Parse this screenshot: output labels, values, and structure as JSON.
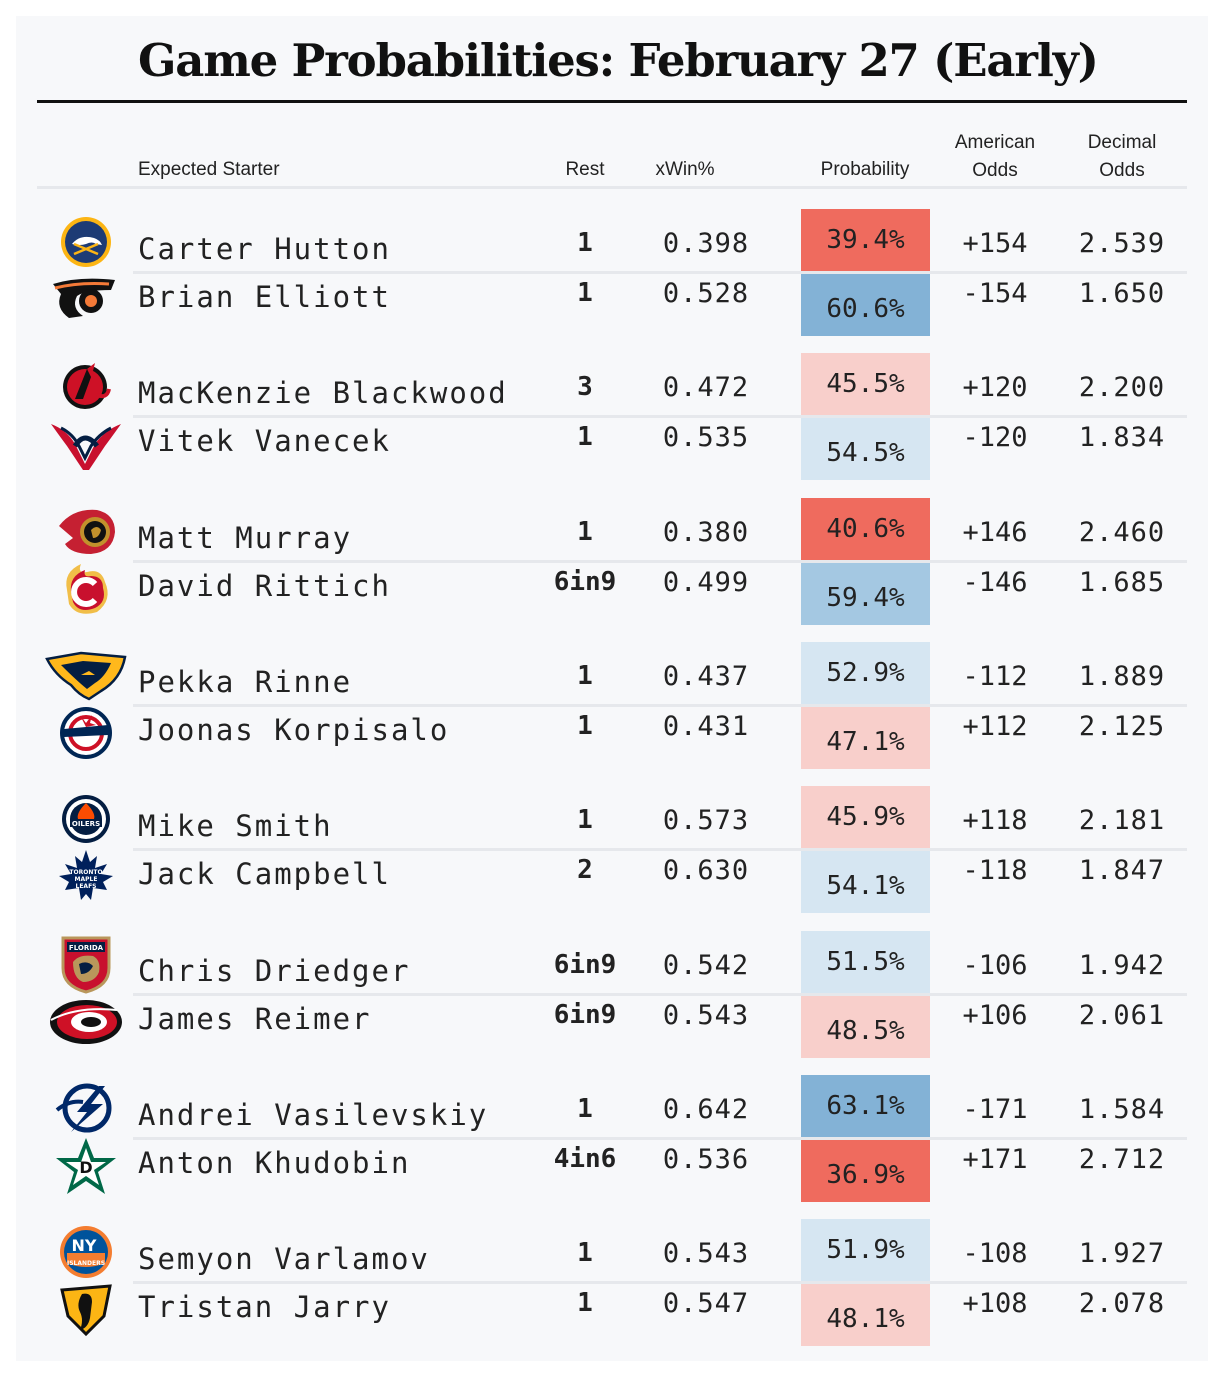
{
  "title": "Game Probabilities: February 27 (Early)",
  "headers": {
    "starter": "Expected Starter",
    "rest": "Rest",
    "xwin": "xWin%",
    "probability": "Probability",
    "american_1": "American",
    "american_2": "Odds",
    "decimal_1": "Decimal",
    "decimal_2": "Odds"
  },
  "colors": {
    "strong_red": "#ef6b5e",
    "medium_red": "#f4a9a1",
    "light_red": "#f8cfcb",
    "strong_blue": "#83b2d6",
    "medium_blue": "#a4c8e2",
    "light_blue": "#d6e6f2"
  },
  "games": [
    {
      "rows": [
        {
          "team_icon": "sabres-logo-icon",
          "name": "Carter Hutton",
          "rest": "1",
          "xwin": "0.398",
          "probability": "39.4%",
          "prob_value": 0.394,
          "american": "+154",
          "decimal": "2.539"
        },
        {
          "team_icon": "flyers-logo-icon",
          "name": "Brian Elliott",
          "rest": "1",
          "xwin": "0.528",
          "probability": "60.6%",
          "prob_value": 0.606,
          "american": "-154",
          "decimal": "1.650"
        }
      ]
    },
    {
      "rows": [
        {
          "team_icon": "devils-logo-icon",
          "name": "MacKenzie Blackwood",
          "rest": "3",
          "xwin": "0.472",
          "probability": "45.5%",
          "prob_value": 0.455,
          "american": "+120",
          "decimal": "2.200"
        },
        {
          "team_icon": "capitals-logo-icon",
          "name": "Vitek Vanecek",
          "rest": "1",
          "xwin": "0.535",
          "probability": "54.5%",
          "prob_value": 0.545,
          "american": "-120",
          "decimal": "1.834"
        }
      ]
    },
    {
      "rows": [
        {
          "team_icon": "senators-logo-icon",
          "name": "Matt Murray",
          "rest": "1",
          "xwin": "0.380",
          "probability": "40.6%",
          "prob_value": 0.406,
          "american": "+146",
          "decimal": "2.460"
        },
        {
          "team_icon": "flames-logo-icon",
          "name": "David Rittich",
          "rest": "6in9",
          "xwin": "0.499",
          "probability": "59.4%",
          "prob_value": 0.594,
          "american": "-146",
          "decimal": "1.685"
        }
      ]
    },
    {
      "rows": [
        {
          "team_icon": "predators-logo-icon",
          "name": "Pekka Rinne",
          "rest": "1",
          "xwin": "0.437",
          "probability": "52.9%",
          "prob_value": 0.529,
          "american": "-112",
          "decimal": "1.889"
        },
        {
          "team_icon": "blue-jackets-logo-icon",
          "name": "Joonas Korpisalo",
          "rest": "1",
          "xwin": "0.431",
          "probability": "47.1%",
          "prob_value": 0.471,
          "american": "+112",
          "decimal": "2.125"
        }
      ]
    },
    {
      "rows": [
        {
          "team_icon": "oilers-logo-icon",
          "name": "Mike Smith",
          "rest": "1",
          "xwin": "0.573",
          "probability": "45.9%",
          "prob_value": 0.459,
          "american": "+118",
          "decimal": "2.181"
        },
        {
          "team_icon": "maple-leafs-logo-icon",
          "name": "Jack Campbell",
          "rest": "2",
          "xwin": "0.630",
          "probability": "54.1%",
          "prob_value": 0.541,
          "american": "-118",
          "decimal": "1.847"
        }
      ]
    },
    {
      "rows": [
        {
          "team_icon": "panthers-logo-icon",
          "name": "Chris Driedger",
          "rest": "6in9",
          "xwin": "0.542",
          "probability": "51.5%",
          "prob_value": 0.515,
          "american": "-106",
          "decimal": "1.942"
        },
        {
          "team_icon": "hurricanes-logo-icon",
          "name": "James Reimer",
          "rest": "6in9",
          "xwin": "0.543",
          "probability": "48.5%",
          "prob_value": 0.485,
          "american": "+106",
          "decimal": "2.061"
        }
      ]
    },
    {
      "rows": [
        {
          "team_icon": "lightning-logo-icon",
          "name": "Andrei Vasilevskiy",
          "rest": "1",
          "xwin": "0.642",
          "probability": "63.1%",
          "prob_value": 0.631,
          "american": "-171",
          "decimal": "1.584"
        },
        {
          "team_icon": "stars-logo-icon",
          "name": "Anton Khudobin",
          "rest": "4in6",
          "xwin": "0.536",
          "probability": "36.9%",
          "prob_value": 0.369,
          "american": "+171",
          "decimal": "2.712"
        }
      ]
    },
    {
      "rows": [
        {
          "team_icon": "islanders-logo-icon",
          "name": "Semyon Varlamov",
          "rest": "1",
          "xwin": "0.543",
          "probability": "51.9%",
          "prob_value": 0.519,
          "american": "-108",
          "decimal": "1.927"
        },
        {
          "team_icon": "penguins-logo-icon",
          "name": "Tristan Jarry",
          "rest": "1",
          "xwin": "0.547",
          "probability": "48.1%",
          "prob_value": 0.481,
          "american": "+108",
          "decimal": "2.078"
        }
      ]
    }
  ]
}
